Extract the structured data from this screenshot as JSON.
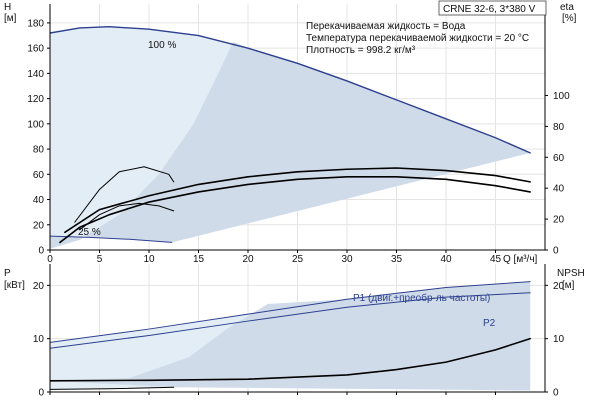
{
  "chart_data": [
    {
      "type": "line",
      "title": "CRNE 32-6, 3*380 V",
      "info": [
        "Перекачиваемая жидкость = Вода",
        "Температура перекачиваемой жидкости = 20 °C",
        "Плотность = 998.2 кг/м³"
      ],
      "ylabel_left": [
        "H",
        "[м]"
      ],
      "ylabel_right": [
        "eta",
        "[%]"
      ],
      "xlabel": "Q [м³/ч]",
      "xlim": [
        0,
        50
      ],
      "ylim": [
        0,
        195
      ],
      "yticks_left": [
        0,
        20,
        40,
        60,
        80,
        100,
        120,
        140,
        160,
        180
      ],
      "yticks_right": [
        0,
        20,
        40,
        60,
        80,
        100
      ],
      "xticks": [
        0,
        5,
        10,
        15,
        20,
        25,
        30,
        35,
        40,
        45
      ],
      "speed_labels": [
        "100 %",
        "25 %"
      ],
      "series": [
        {
          "name": "100 %",
          "color": "#2d3f8f",
          "x": [
            0,
            3,
            6,
            10,
            15,
            20,
            25,
            30,
            35,
            40,
            45,
            48.5
          ],
          "y": [
            172,
            176,
            177,
            175,
            170,
            160,
            148,
            134,
            119,
            104,
            89,
            77
          ]
        },
        {
          "name": "25 %",
          "color": "#2d3f8f",
          "x": [
            0,
            4,
            8,
            12.3
          ],
          "y": [
            11,
            10,
            8.5,
            6
          ]
        },
        {
          "color": "#000000",
          "x": [
            1,
            3,
            6,
            10,
            15,
            20,
            25,
            30,
            35,
            40,
            45,
            48.5
          ],
          "y": [
            6,
            18,
            28,
            38,
            46,
            52,
            56,
            58,
            58,
            56,
            51,
            46
          ]
        },
        {
          "color": "#000000",
          "x": [
            3,
            5,
            7,
            9,
            11,
            12.5
          ],
          "y": [
            16,
            28,
            35,
            37,
            35,
            31
          ]
        },
        {
          "color": "#000000",
          "x": [
            2.5,
            5,
            7,
            9.5,
            12,
            12.5
          ],
          "y": [
            22,
            48,
            62,
            66,
            60,
            54
          ]
        },
        {
          "color": "#000000",
          "x": [
            1.5,
            5,
            10,
            15,
            20,
            25,
            30,
            35,
            40,
            45,
            48.5
          ],
          "y": [
            14,
            32,
            43,
            52,
            58,
            62,
            64,
            65,
            63,
            59,
            54
          ]
        }
      ]
    },
    {
      "type": "line",
      "ylabel_left": [
        "P",
        "[кВт]"
      ],
      "ylabel_right": [
        "NPSH",
        "[м]"
      ],
      "xlim": [
        0,
        50
      ],
      "ylim": [
        0,
        24
      ],
      "yticks_left": [
        0,
        10,
        20
      ],
      "yticks_right": [
        0,
        10,
        20
      ],
      "series": [
        {
          "name": "P1 (двиг.+преобр-ль частоты)",
          "color": "#2d3f8f",
          "x": [
            0,
            10,
            20,
            30,
            40,
            48.5
          ],
          "y": [
            9.3,
            11.8,
            14.6,
            17.4,
            19.6,
            20.7
          ]
        },
        {
          "name": "P2",
          "color": "#2d3f8f",
          "x": [
            0,
            10,
            20,
            30,
            40,
            48.5
          ],
          "y": [
            8.2,
            10.6,
            13.3,
            15.9,
            17.8,
            18.6
          ]
        },
        {
          "color": "#000000",
          "x": [
            0,
            10,
            20,
            30,
            35,
            40,
            45,
            48.5
          ],
          "y": [
            2.1,
            2.2,
            2.4,
            3.2,
            4.2,
            5.6,
            7.9,
            10.0
          ]
        },
        {
          "color": "#000000",
          "x": [
            0,
            6,
            12.5
          ],
          "y": [
            0.5,
            0.6,
            0.9
          ]
        }
      ]
    }
  ]
}
